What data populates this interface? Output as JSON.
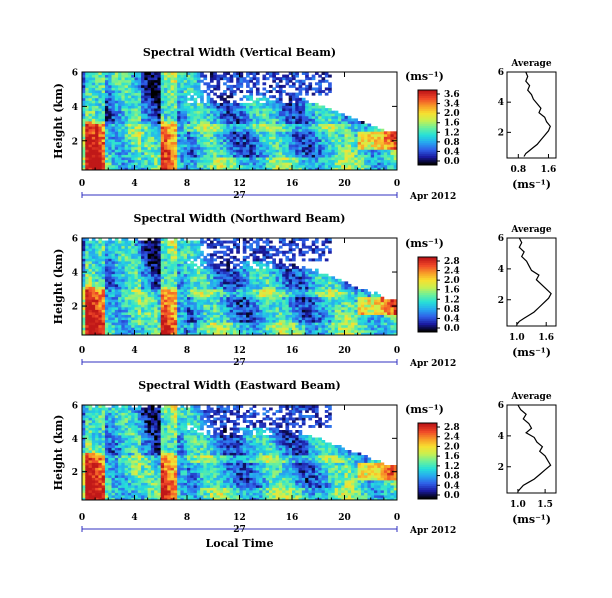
{
  "figure": {
    "date_label": "Apr 2012",
    "day_label": "27",
    "xlabel": "Local Time",
    "colors": {
      "axis": "#000000",
      "time_bar": "#3030c0",
      "missing": "#ffffff"
    }
  },
  "chart_data": [
    {
      "type": "heatmap",
      "title": "Spectral Width (Vertical Beam)",
      "ylabel": "Height (km)",
      "x_ticks": [
        "0",
        "4",
        "8",
        "12",
        "16",
        "20",
        "0"
      ],
      "xlim": [
        0,
        24
      ],
      "y_ticks": [
        "6",
        "4",
        "2"
      ],
      "ylim": [
        0.3,
        6
      ],
      "colorbar": {
        "unit_label": "(ms⁻¹)",
        "ticks": [
          "3.6",
          "3.4",
          "2.0",
          "1.6",
          "1.2",
          "0.8",
          "0.4",
          "0.0"
        ],
        "colormap": [
          "#000000",
          "#1a1aa0",
          "#2f5fe8",
          "#27a8f0",
          "#26e0d8",
          "#6cf09a",
          "#c8f050",
          "#f8e030",
          "#f89a28",
          "#f04828",
          "#c01818"
        ]
      },
      "profile": {
        "title": "Average",
        "xlabel": "(ms⁻¹)",
        "x_ticks": [
          "0.8",
          "1.6"
        ],
        "y_ticks": [
          "6",
          "4",
          "2"
        ],
        "xlim": [
          0.5,
          1.8
        ],
        "ylim": [
          0.3,
          6
        ],
        "x": [
          1.0,
          1.05,
          1.0,
          1.1,
          1.05,
          1.15,
          1.2,
          1.3,
          1.4,
          1.35,
          1.5,
          1.55,
          1.65,
          1.6,
          1.5,
          1.4,
          1.3,
          1.2,
          1.1,
          1.0,
          0.95
        ],
        "y": [
          6.0,
          5.7,
          5.4,
          5.1,
          4.8,
          4.5,
          4.2,
          3.9,
          3.6,
          3.3,
          3.0,
          2.7,
          2.4,
          2.1,
          1.8,
          1.5,
          1.2,
          1.0,
          0.8,
          0.6,
          0.4
        ]
      }
    },
    {
      "type": "heatmap",
      "title": "Spectral Width (Northward Beam)",
      "ylabel": "Height (km)",
      "x_ticks": [
        "0",
        "4",
        "8",
        "12",
        "16",
        "20",
        "0"
      ],
      "xlim": [
        0,
        24
      ],
      "y_ticks": [
        "6",
        "4",
        "2"
      ],
      "ylim": [
        0.3,
        6
      ],
      "colorbar": {
        "unit_label": "(ms⁻¹)",
        "ticks": [
          "2.8",
          "2.4",
          "2.0",
          "1.6",
          "1.2",
          "0.8",
          "0.4",
          "0.0"
        ],
        "colormap": [
          "#000000",
          "#1a1aa0",
          "#2f5fe8",
          "#27a8f0",
          "#26e0d8",
          "#6cf09a",
          "#c8f050",
          "#f8e030",
          "#f89a28",
          "#f04828",
          "#c01818"
        ]
      },
      "profile": {
        "title": "Average",
        "xlabel": "(ms⁻¹)",
        "x_ticks": [
          "1.0",
          "1.6"
        ],
        "y_ticks": [
          "6",
          "4",
          "2"
        ],
        "xlim": [
          0.8,
          1.8
        ],
        "ylim": [
          0.3,
          6
        ],
        "x": [
          1.05,
          1.1,
          1.05,
          1.15,
          1.1,
          1.2,
          1.25,
          1.3,
          1.45,
          1.4,
          1.5,
          1.6,
          1.7,
          1.65,
          1.55,
          1.45,
          1.35,
          1.25,
          1.15,
          1.05,
          1.0
        ],
        "y": [
          6.0,
          5.7,
          5.4,
          5.1,
          4.8,
          4.5,
          4.2,
          3.9,
          3.6,
          3.3,
          3.0,
          2.7,
          2.4,
          2.1,
          1.8,
          1.5,
          1.2,
          1.0,
          0.8,
          0.6,
          0.4
        ]
      }
    },
    {
      "type": "heatmap",
      "title": "Spectral Width (Eastward Beam)",
      "ylabel": "Height (km)",
      "x_ticks": [
        "0",
        "4",
        "8",
        "12",
        "16",
        "20",
        "0"
      ],
      "xlim": [
        0,
        24
      ],
      "y_ticks": [
        "6",
        "4",
        "2"
      ],
      "ylim": [
        0.3,
        6
      ],
      "colorbar": {
        "unit_label": "(ms⁻¹)",
        "ticks": [
          "2.8",
          "2.4",
          "2.0",
          "1.6",
          "1.2",
          "0.8",
          "0.4",
          "0.0"
        ],
        "colormap": [
          "#000000",
          "#1a1aa0",
          "#2f5fe8",
          "#27a8f0",
          "#26e0d8",
          "#6cf09a",
          "#c8f050",
          "#f8e030",
          "#f89a28",
          "#f04828",
          "#c01818"
        ]
      },
      "profile": {
        "title": "Average",
        "xlabel": "(ms⁻¹)",
        "x_ticks": [
          "1.0",
          "1.5"
        ],
        "y_ticks": [
          "6",
          "4",
          "2"
        ],
        "xlim": [
          0.8,
          1.7
        ],
        "ylim": [
          0.3,
          6
        ],
        "x": [
          1.0,
          1.05,
          1.15,
          1.1,
          1.2,
          1.25,
          1.15,
          1.3,
          1.35,
          1.45,
          1.4,
          1.5,
          1.55,
          1.6,
          1.5,
          1.4,
          1.3,
          1.2,
          1.1,
          1.05,
          1.0
        ],
        "y": [
          6.0,
          5.7,
          5.4,
          5.1,
          4.8,
          4.5,
          4.2,
          3.9,
          3.6,
          3.3,
          3.0,
          2.7,
          2.4,
          2.1,
          1.8,
          1.5,
          1.2,
          1.0,
          0.8,
          0.6,
          0.4
        ]
      }
    }
  ]
}
